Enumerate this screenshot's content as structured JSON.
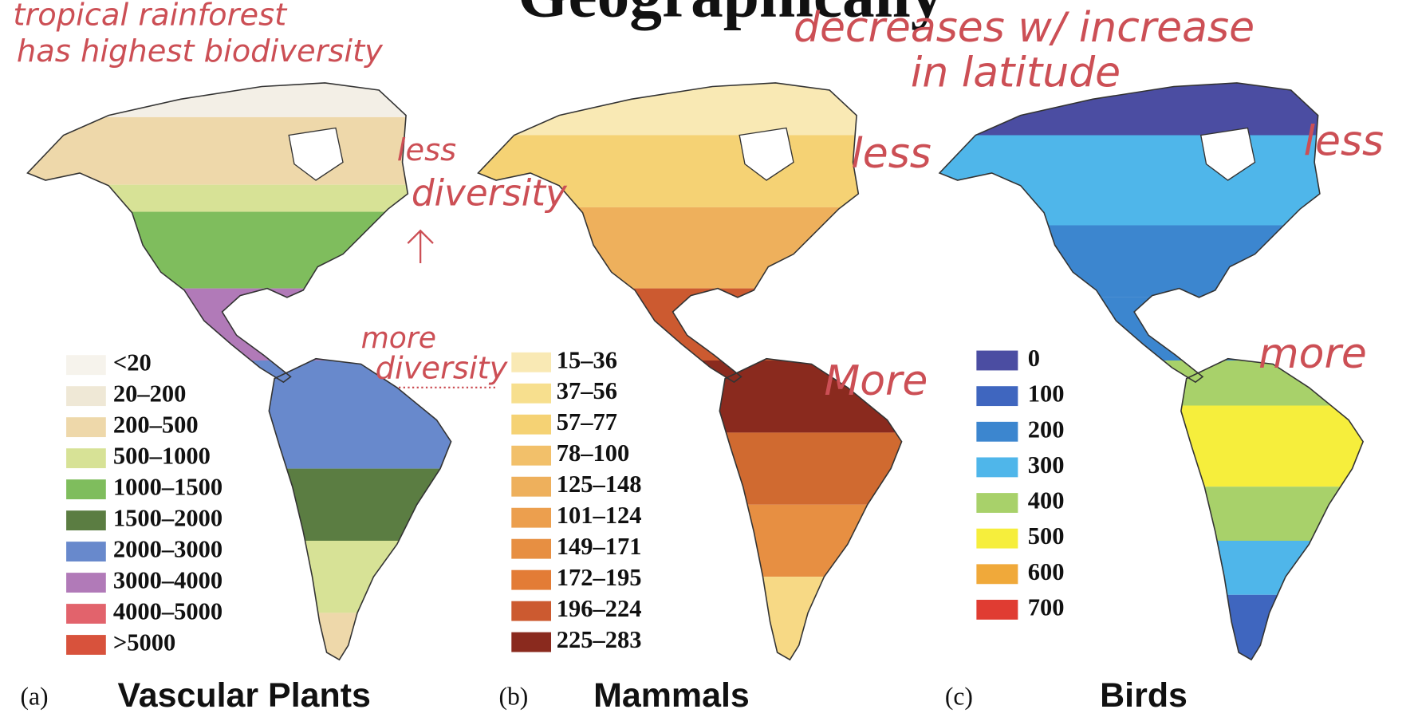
{
  "header": {
    "title": "Geographically"
  },
  "annotations": {
    "rainforest": [
      "tropical rainforest",
      "has highest biodiversity"
    ],
    "latitude": [
      "decreases w/ increase",
      "in latitude"
    ],
    "plants_less": [
      "less",
      "diversity"
    ],
    "plants_more": [
      "more",
      "diversity"
    ],
    "mammals_less": "less",
    "mammals_more": "More",
    "birds_less": "less",
    "birds_more": "more"
  },
  "panels": [
    {
      "letter": "(a)",
      "caption": "Vascular Plants",
      "legend": [
        {
          "label": "<20",
          "color": "#f6f3ec"
        },
        {
          "label": "20–200",
          "color": "#efe8d6"
        },
        {
          "label": "200–500",
          "color": "#eed8aa"
        },
        {
          "label": "500–1000",
          "color": "#d7e296"
        },
        {
          "label": "1000–1500",
          "color": "#7fbd5d"
        },
        {
          "label": "1500–2000",
          "color": "#5b7d42"
        },
        {
          "label": "2000–3000",
          "color": "#6889cc"
        },
        {
          "label": "3000–4000",
          "color": "#b17ab8"
        },
        {
          "label": "4000–5000",
          "color": "#e2636c"
        },
        {
          "label": ">5000",
          "color": "#d8523c"
        }
      ]
    },
    {
      "letter": "(b)",
      "caption": "Mammals",
      "legend": [
        {
          "label": "15–36",
          "color": "#f9e9b4"
        },
        {
          "label": "37–56",
          "color": "#f7df8e"
        },
        {
          "label": "57–77",
          "color": "#f5d274"
        },
        {
          "label": "78–100",
          "color": "#f2c06a"
        },
        {
          "label": "125–148",
          "color": "#eeb05c"
        },
        {
          "label": "101–124",
          "color": "#ec9f4e"
        },
        {
          "label": "149–171",
          "color": "#e78f42"
        },
        {
          "label": "172–195",
          "color": "#e37c36"
        },
        {
          "label": "196–224",
          "color": "#cc5a30"
        },
        {
          "label": "225–283",
          "color": "#8a2a1e"
        }
      ]
    },
    {
      "letter": "(c)",
      "caption": "Birds",
      "legend": [
        {
          "label": "0",
          "color": "#4b4da2"
        },
        {
          "label": "100",
          "color": "#3f66bf"
        },
        {
          "label": "200",
          "color": "#3c86cf"
        },
        {
          "label": "300",
          "color": "#4fb6ea"
        },
        {
          "label": "400",
          "color": "#a8d16a"
        },
        {
          "label": "500",
          "color": "#f6ee3c"
        },
        {
          "label": "600",
          "color": "#f0a93a"
        },
        {
          "label": "700",
          "color": "#e03c32"
        }
      ]
    }
  ]
}
